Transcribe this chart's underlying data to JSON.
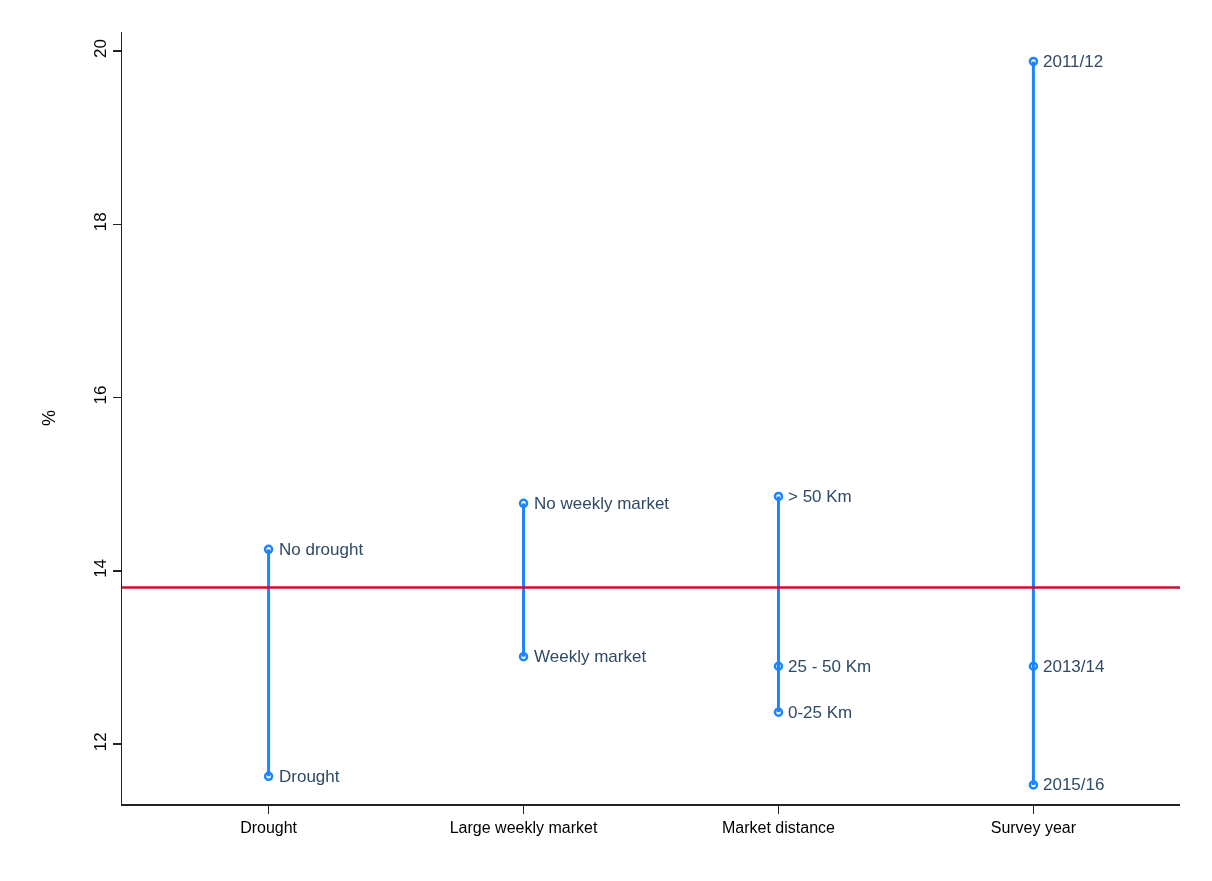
{
  "chart_data": {
    "type": "line",
    "ylabel": "%",
    "categories": [
      "Drought",
      "Large weekly market",
      "Market distance",
      "Survey year"
    ],
    "series": [
      {
        "x": [
          "Drought",
          "Drought"
        ],
        "values": [
          14.25,
          11.63
        ],
        "color": "#1a85ff"
      },
      {
        "x": [
          "Large weekly market",
          "Large weekly market"
        ],
        "values": [
          14.78,
          13.01
        ],
        "color": "#1a85ff"
      },
      {
        "x": [
          "Market distance",
          "Market distance",
          "Market distance"
        ],
        "values": [
          14.86,
          12.9,
          12.37
        ],
        "color": "#1a85ff"
      },
      {
        "x": [
          "Survey year",
          "Survey year",
          "Survey year"
        ],
        "values": [
          19.88,
          12.9,
          11.53
        ],
        "color": "#1a85ff"
      }
    ],
    "annotations": [
      {
        "text": "No drought",
        "x": "Drought",
        "y": 14.25
      },
      {
        "text": "Drought",
        "x": "Drought",
        "y": 11.63
      },
      {
        "text": "No weekly market",
        "x": "Large weekly market",
        "y": 14.78
      },
      {
        "text": "Weekly market",
        "x": "Large weekly market",
        "y": 13.01
      },
      {
        "text": "> 50 Km",
        "x": "Market distance",
        "y": 14.86
      },
      {
        "text": "25 - 50 Km",
        "x": "Market distance",
        "y": 12.9
      },
      {
        "text": "0-25 Km",
        "x": "Market distance",
        "y": 12.37
      },
      {
        "text": "2011/12",
        "x": "Survey year",
        "y": 19.88
      },
      {
        "text": "2013/14",
        "x": "Survey year",
        "y": 12.9
      },
      {
        "text": "2015/16",
        "x": "Survey year",
        "y": 11.53
      }
    ],
    "ylim": [
      11.31,
      20.22
    ],
    "yticks": [
      12,
      14,
      16,
      18,
      20
    ],
    "ref_lines": [
      {
        "axis": "y",
        "value": 13.81,
        "color": "#c8102e"
      }
    ],
    "grid": false,
    "marker": "circle",
    "line_style": "solid"
  }
}
